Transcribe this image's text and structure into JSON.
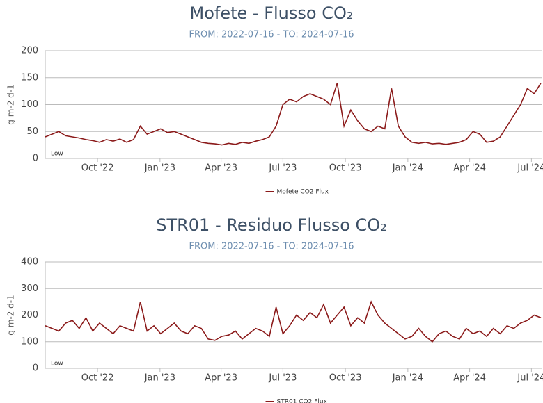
{
  "chart_data": [
    {
      "type": "line",
      "title": "Mofete - Flusso CO₂",
      "subtitle": "FROM: 2022-07-16 - TO: 2024-07-16",
      "y_label": "g m-2 d-1",
      "annotation": "Low",
      "x": [
        "2022-07-16",
        "2022-07-26",
        "2022-08-05",
        "2022-08-15",
        "2022-08-25",
        "2022-09-04",
        "2022-09-14",
        "2022-09-24",
        "2022-10-04",
        "2022-10-14",
        "2022-10-24",
        "2022-11-03",
        "2022-11-13",
        "2022-11-23",
        "2022-12-03",
        "2022-12-13",
        "2022-12-23",
        "2023-01-02",
        "2023-01-12",
        "2023-01-22",
        "2023-02-01",
        "2023-02-11",
        "2023-02-21",
        "2023-03-03",
        "2023-03-13",
        "2023-03-23",
        "2023-04-02",
        "2023-04-12",
        "2023-04-22",
        "2023-05-02",
        "2023-05-12",
        "2023-05-22",
        "2023-06-01",
        "2023-06-11",
        "2023-06-21",
        "2023-07-01",
        "2023-07-11",
        "2023-07-21",
        "2023-07-31",
        "2023-08-10",
        "2023-08-20",
        "2023-08-30",
        "2023-09-09",
        "2023-09-19",
        "2023-09-29",
        "2023-10-09",
        "2023-10-19",
        "2023-10-29",
        "2023-11-08",
        "2023-11-18",
        "2023-11-28",
        "2023-12-08",
        "2023-12-18",
        "2023-12-28",
        "2024-01-07",
        "2024-01-17",
        "2024-01-27",
        "2024-02-06",
        "2024-02-16",
        "2024-02-26",
        "2024-03-07",
        "2024-03-17",
        "2024-03-27",
        "2024-04-06",
        "2024-04-16",
        "2024-04-26",
        "2024-05-06",
        "2024-05-16",
        "2024-05-26",
        "2024-06-05",
        "2024-06-15",
        "2024-06-25",
        "2024-07-05",
        "2024-07-15"
      ],
      "series": [
        {
          "name": "Mofete CO2 Flux",
          "color": "#8b1a1a",
          "values": [
            40,
            45,
            50,
            42,
            40,
            38,
            35,
            33,
            30,
            35,
            32,
            36,
            30,
            35,
            60,
            45,
            50,
            55,
            48,
            50,
            45,
            40,
            35,
            30,
            28,
            27,
            25,
            28,
            26,
            30,
            28,
            32,
            35,
            40,
            60,
            100,
            110,
            105,
            115,
            120,
            115,
            110,
            100,
            140,
            60,
            90,
            70,
            55,
            50,
            60,
            55,
            130,
            60,
            40,
            30,
            28,
            30,
            27,
            28,
            26,
            28,
            30,
            35,
            50,
            45,
            30,
            32,
            40,
            60,
            80,
            100,
            130,
            120,
            140
          ]
        }
      ],
      "xlim": [
        "2022-07-16",
        "2024-07-16"
      ],
      "xticks": [
        {
          "value": "2022-10-01",
          "label": "Oct '22"
        },
        {
          "value": "2023-01-01",
          "label": "Jan '23"
        },
        {
          "value": "2023-04-01",
          "label": "Apr '23"
        },
        {
          "value": "2023-07-01",
          "label": "Jul '23"
        },
        {
          "value": "2023-10-01",
          "label": "Oct '23"
        },
        {
          "value": "2024-01-01",
          "label": "Jan '24"
        },
        {
          "value": "2024-04-01",
          "label": "Apr '24"
        },
        {
          "value": "2024-07-01",
          "label": "Jul '24"
        }
      ],
      "ylim": [
        0,
        200
      ],
      "yticks": [
        0,
        50,
        100,
        150,
        200
      ],
      "grid": true
    },
    {
      "type": "line",
      "title": "STR01 - Residuo Flusso CO₂",
      "subtitle": "FROM: 2022-07-16 - TO: 2024-07-16",
      "y_label": "g m-2 d-1",
      "annotation": "Low",
      "x": [
        "2022-07-16",
        "2022-07-26",
        "2022-08-05",
        "2022-08-15",
        "2022-08-25",
        "2022-09-04",
        "2022-09-14",
        "2022-09-24",
        "2022-10-04",
        "2022-10-14",
        "2022-10-24",
        "2022-11-03",
        "2022-11-13",
        "2022-11-23",
        "2022-12-03",
        "2022-12-13",
        "2022-12-23",
        "2023-01-02",
        "2023-01-12",
        "2023-01-22",
        "2023-02-01",
        "2023-02-11",
        "2023-02-21",
        "2023-03-03",
        "2023-03-13",
        "2023-03-23",
        "2023-04-02",
        "2023-04-12",
        "2023-04-22",
        "2023-05-02",
        "2023-05-12",
        "2023-05-22",
        "2023-06-01",
        "2023-06-11",
        "2023-06-21",
        "2023-07-01",
        "2023-07-11",
        "2023-07-21",
        "2023-07-31",
        "2023-08-10",
        "2023-08-20",
        "2023-08-30",
        "2023-09-09",
        "2023-09-19",
        "2023-09-29",
        "2023-10-09",
        "2023-10-19",
        "2023-10-29",
        "2023-11-08",
        "2023-11-18",
        "2023-11-28",
        "2023-12-08",
        "2023-12-18",
        "2023-12-28",
        "2024-01-07",
        "2024-01-17",
        "2024-01-27",
        "2024-02-06",
        "2024-02-16",
        "2024-02-26",
        "2024-03-07",
        "2024-03-17",
        "2024-03-27",
        "2024-04-06",
        "2024-04-16",
        "2024-04-26",
        "2024-05-06",
        "2024-05-16",
        "2024-05-26",
        "2024-06-05",
        "2024-06-15",
        "2024-06-25",
        "2024-07-05",
        "2024-07-15"
      ],
      "series": [
        {
          "name": "STR01 CO2 Flux",
          "color": "#8b1a1a",
          "values": [
            160,
            150,
            140,
            170,
            180,
            150,
            190,
            140,
            170,
            150,
            130,
            160,
            150,
            140,
            250,
            140,
            160,
            130,
            150,
            170,
            140,
            130,
            160,
            150,
            110,
            105,
            120,
            125,
            140,
            110,
            130,
            150,
            140,
            120,
            230,
            130,
            160,
            200,
            180,
            210,
            190,
            240,
            170,
            200,
            230,
            160,
            190,
            170,
            250,
            200,
            170,
            150,
            130,
            110,
            120,
            150,
            120,
            100,
            130,
            140,
            120,
            110,
            150,
            130,
            140,
            120,
            150,
            130,
            160,
            150,
            170,
            180,
            200,
            190
          ]
        }
      ],
      "xlim": [
        "2022-07-16",
        "2024-07-16"
      ],
      "xticks": [
        {
          "value": "2022-10-01",
          "label": "Oct '22"
        },
        {
          "value": "2023-01-01",
          "label": "Jan '23"
        },
        {
          "value": "2023-04-01",
          "label": "Apr '23"
        },
        {
          "value": "2023-07-01",
          "label": "Jul '23"
        },
        {
          "value": "2023-10-01",
          "label": "Oct '23"
        },
        {
          "value": "2024-01-01",
          "label": "Jan '24"
        },
        {
          "value": "2024-04-01",
          "label": "Apr '24"
        },
        {
          "value": "2024-07-01",
          "label": "Jul '24"
        }
      ],
      "ylim": [
        0,
        400
      ],
      "yticks": [
        0,
        100,
        200,
        300,
        400
      ],
      "grid": true
    }
  ]
}
